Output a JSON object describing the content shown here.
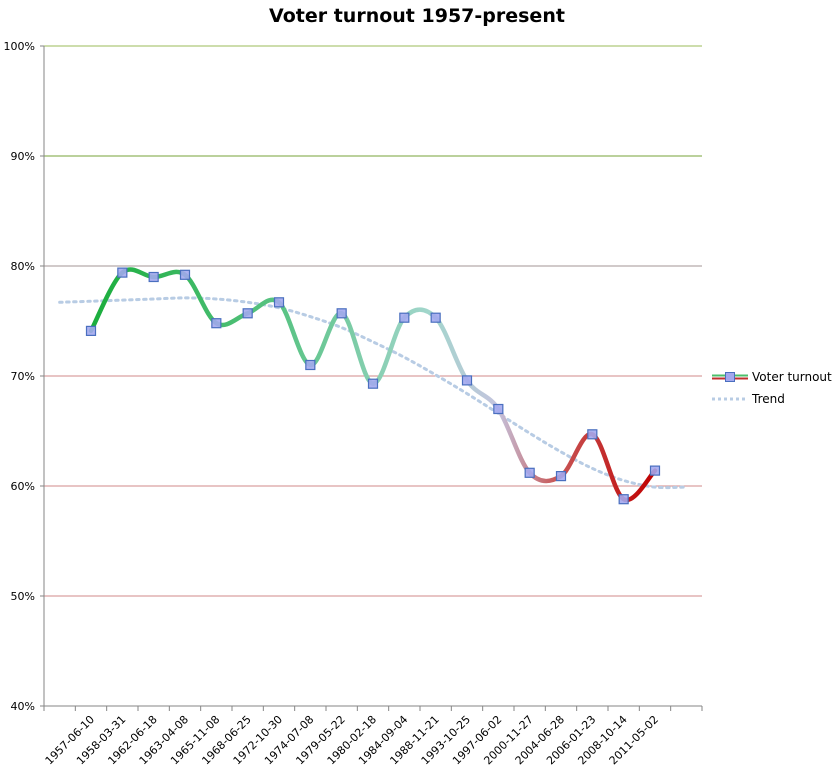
{
  "chart_data": {
    "type": "line",
    "title": "Voter turnout 1957-present",
    "xlabel": "",
    "ylabel": "",
    "ylim": [
      40,
      100
    ],
    "y_ticks": [
      "40%",
      "50%",
      "60%",
      "70%",
      "80%",
      "90%",
      "100%"
    ],
    "grid": true,
    "legend_position": "right",
    "categories": [
      "1957-06-10",
      "1958-03-31",
      "1962-06-18",
      "1963-04-08",
      "1965-11-08",
      "1968-06-25",
      "1972-10-30",
      "1974-07-08",
      "1979-05-22",
      "1980-02-18",
      "1984-09-04",
      "1988-11-21",
      "1993-10-25",
      "1997-06-02",
      "2000-11-27",
      "2004-06-28",
      "2006-01-23",
      "2008-10-14",
      "2011-05-02"
    ],
    "series": [
      {
        "name": "Voter turnout",
        "values": [
          74.1,
          79.4,
          79.0,
          79.2,
          74.8,
          75.7,
          76.7,
          71.0,
          75.7,
          69.3,
          75.3,
          75.3,
          69.6,
          67.0,
          61.2,
          60.9,
          64.7,
          58.8,
          61.4
        ],
        "marker": "square",
        "colors": {
          "start": "#1aad3c",
          "middle": "#c4c4de",
          "end": "#c00000"
        }
      },
      {
        "name": "Trend",
        "style": "dotted",
        "color": "#b8cce4",
        "values": [
          76.8,
          76.9,
          77.0,
          77.1,
          77.0,
          76.7,
          76.2,
          75.4,
          74.4,
          73.1,
          71.7,
          70.1,
          68.4,
          66.6,
          64.8,
          63.1,
          61.6,
          60.5,
          59.9
        ]
      }
    ],
    "gridline_colors": {
      "100": "#9bbb59",
      "90": "#77a33a",
      "80": "#a39494",
      "70": "#d08a8a",
      "60": "#d08a8a",
      "50": "#d08a8a"
    }
  }
}
